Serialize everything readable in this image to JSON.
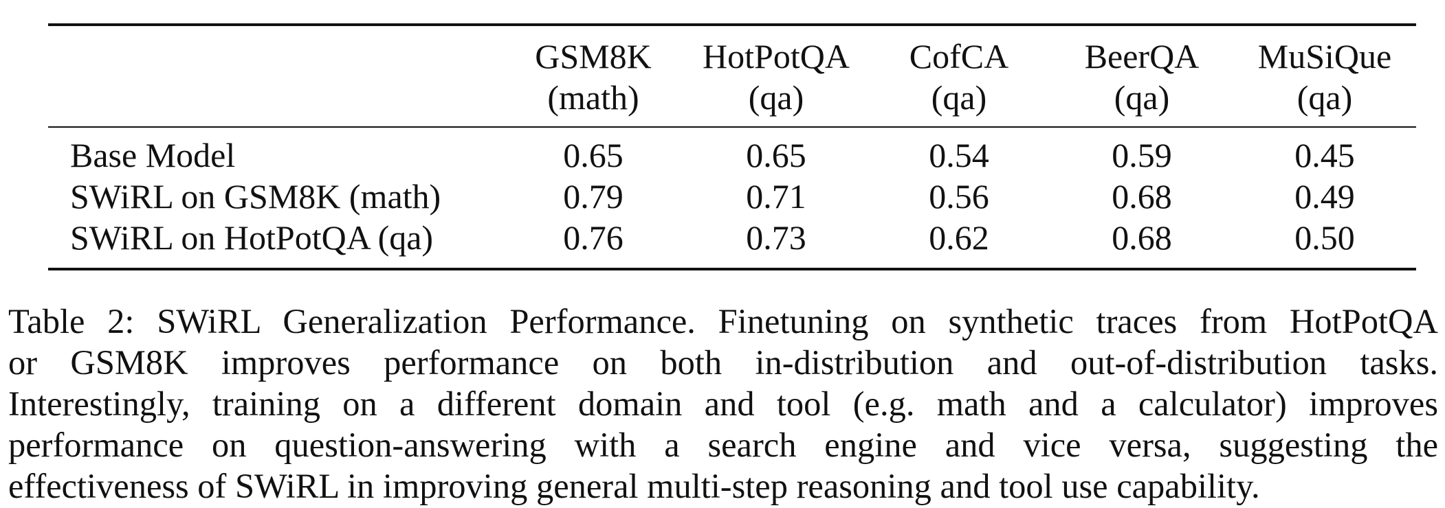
{
  "table": {
    "columns": [
      {
        "name": "GSM8K",
        "type": "(math)"
      },
      {
        "name": "HotPotQA",
        "type": "(qa)"
      },
      {
        "name": "CofCA",
        "type": "(qa)"
      },
      {
        "name": "BeerQA",
        "type": "(qa)"
      },
      {
        "name": "MuSiQue",
        "type": "(qa)"
      }
    ],
    "rows": [
      {
        "label": "Base Model",
        "values": [
          "0.65",
          "0.65",
          "0.54",
          "0.59",
          "0.45"
        ]
      },
      {
        "label": "SWiRL on GSM8K (math)",
        "values": [
          "0.79",
          "0.71",
          "0.56",
          "0.68",
          "0.49"
        ]
      },
      {
        "label": "SWiRL on HotPotQA (qa)",
        "values": [
          "0.76",
          "0.73",
          "0.62",
          "0.68",
          "0.50"
        ]
      }
    ]
  },
  "caption": {
    "lines": [
      "Table 2: SWiRL Generalization Performance. Finetuning on synthetic traces from HotPotQA",
      "or GSM8K improves performance on both in-distribution and out-of-distribution tasks.",
      "Interestingly, training on a different domain and tool (e.g. math and a calculator) improves",
      "performance on question-answering with a search engine and vice versa, suggesting the",
      "effectiveness of SWiRL in improving general multi-step reasoning and tool use capability."
    ]
  }
}
